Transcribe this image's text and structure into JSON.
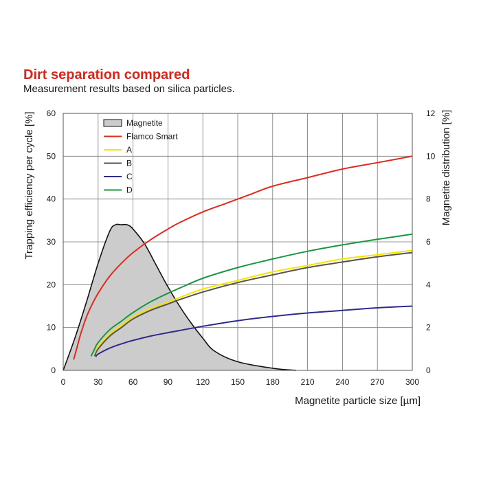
{
  "title": "Dirt separation compared",
  "subtitle": "Measurement results based on silica particles.",
  "chart_data": {
    "type": "line",
    "xlabel": "Magnetite particle size [µm]",
    "ylabel_left": "Trapping efficiency per cycle [%]",
    "ylabel_right": "Magnetite distribution [%]",
    "xlim": [
      0,
      300
    ],
    "ylim_left": [
      0,
      60
    ],
    "ylim_right": [
      0,
      12
    ],
    "x_ticks": [
      0,
      30,
      60,
      90,
      120,
      150,
      180,
      210,
      240,
      270,
      300
    ],
    "y_ticks_left": [
      0,
      10,
      20,
      30,
      40,
      50,
      60
    ],
    "y_ticks_right": [
      0,
      2,
      4,
      6,
      8,
      10,
      12
    ],
    "grid": true,
    "legend_position": "top-left",
    "series": [
      {
        "name": "Magnetite",
        "kind": "area",
        "axis": "right",
        "color": "#cccccc",
        "stroke": "#111111",
        "x": [
          0,
          10,
          20,
          30,
          40,
          45,
          50,
          55,
          60,
          70,
          80,
          90,
          100,
          110,
          120,
          130,
          150,
          180,
          200
        ],
        "y": [
          0,
          1.5,
          3.2,
          5.0,
          6.5,
          6.8,
          6.8,
          6.8,
          6.6,
          5.9,
          4.9,
          3.9,
          3.0,
          2.2,
          1.5,
          0.9,
          0.4,
          0.1,
          0
        ]
      },
      {
        "name": "Flamco Smart",
        "kind": "line",
        "axis": "left",
        "color": "#e02a1e",
        "x": [
          9,
          12,
          15,
          20,
          25,
          30,
          40,
          50,
          60,
          75,
          90,
          100,
          120,
          140,
          160,
          180,
          210,
          240,
          270,
          300
        ],
        "y": [
          2.5,
          5.5,
          8.5,
          12.5,
          15.5,
          18,
          22,
          25,
          27.5,
          30.5,
          33,
          34.5,
          37,
          39,
          41,
          43,
          45,
          47,
          48.5,
          50
        ]
      },
      {
        "name": "A",
        "kind": "line",
        "axis": "left",
        "color": "#f2e600",
        "x": [
          27,
          30,
          40,
          50,
          60,
          75,
          90,
          100,
          120,
          150,
          180,
          210,
          240,
          270,
          300
        ],
        "y": [
          3.5,
          5.5,
          8.5,
          10.5,
          12.5,
          14.5,
          16,
          17,
          19,
          21,
          23,
          24.5,
          26,
          27,
          28
        ]
      },
      {
        "name": "B",
        "kind": "line",
        "axis": "left",
        "color": "#5a5444",
        "x": [
          27,
          30,
          40,
          50,
          60,
          75,
          90,
          100,
          120,
          150,
          180,
          210,
          240,
          270,
          300
        ],
        "y": [
          3.3,
          5,
          8,
          10,
          12,
          14,
          15.5,
          16.5,
          18.3,
          20.5,
          22.3,
          24,
          25.3,
          26.5,
          27.5
        ]
      },
      {
        "name": "C",
        "kind": "line",
        "axis": "left",
        "color": "#2e2b8c",
        "x": [
          28,
          30,
          40,
          50,
          60,
          75,
          90,
          100,
          120,
          150,
          180,
          210,
          240,
          270,
          300
        ],
        "y": [
          3.2,
          3.8,
          5.2,
          6.2,
          7.0,
          8.0,
          8.8,
          9.3,
          10.3,
          11.6,
          12.6,
          13.4,
          14.0,
          14.6,
          15.0
        ]
      },
      {
        "name": "D",
        "kind": "line",
        "axis": "left",
        "color": "#1a9640",
        "x": [
          24,
          27,
          30,
          40,
          50,
          60,
          75,
          90,
          100,
          120,
          150,
          180,
          210,
          240,
          270,
          300
        ],
        "y": [
          3.3,
          5.0,
          6.5,
          9.5,
          11.5,
          13.5,
          16,
          18,
          19.2,
          21.5,
          24,
          26,
          27.8,
          29.3,
          30.6,
          31.8
        ]
      }
    ]
  }
}
